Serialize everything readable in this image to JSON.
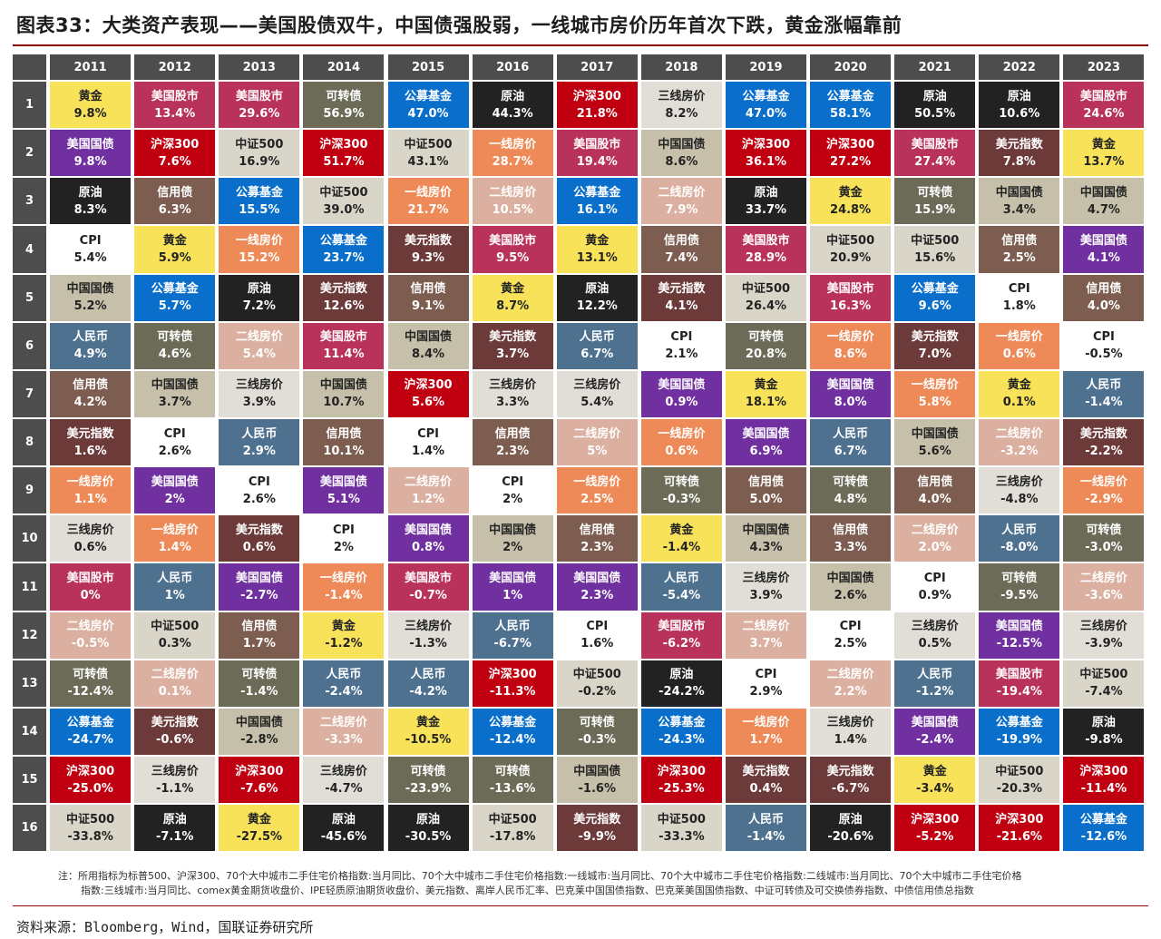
{
  "title": "图表33：大类资产表现——美国股债双牛，中国债强股弱，一线城市房价历年首次下跌，黄金涨幅靠前",
  "note_lines": [
    "注：所用指标为标普500、沪深300、70个大中城市二手住宅价格指数:当月同比、70个大中城市二手住宅价格指数:一线城市:当月同比、70个大中城市二手住宅价格指数:二线城市:当月同比、70个大中城市二手住宅价格",
    "指数:三线城市:当月同比、comex黄金期货收盘价、IPE轻质原油期货收盘价、美元指数、离岸人民币汇率、巴克莱中国国债指数、巴克莱美国国债指数、中证可转债及可交换债券指数、中债信用债总指数"
  ],
  "source": "资料来源：Bloomberg，Wind，国联证券研究所",
  "chart_data": {
    "type": "table",
    "years": [
      "2011",
      "2012",
      "2013",
      "2014",
      "2015",
      "2016",
      "2017",
      "2018",
      "2019",
      "2020",
      "2021",
      "2022",
      "2023"
    ],
    "ranks": [
      "1",
      "2",
      "3",
      "4",
      "5",
      "6",
      "7",
      "8",
      "9",
      "10",
      "11",
      "12",
      "13",
      "14",
      "15",
      "16"
    ],
    "asset_colors": {
      "黄金": {
        "bg": "#f7e25a",
        "fg": "#222222"
      },
      "美国股市": {
        "bg": "#b9325c",
        "fg": "#ffffff"
      },
      "可转债": {
        "bg": "#6b6b58",
        "fg": "#ffffff"
      },
      "公募基金": {
        "bg": "#0a6fcb",
        "fg": "#ffffff"
      },
      "原油": {
        "bg": "#222222",
        "fg": "#ffffff"
      },
      "沪深300": {
        "bg": "#c00010",
        "fg": "#ffffff"
      },
      "三线房价": {
        "bg": "#e0ded6",
        "fg": "#222222"
      },
      "美国国债": {
        "bg": "#7030a0",
        "fg": "#ffffff"
      },
      "中国国债": {
        "bg": "#c6c0ab",
        "fg": "#222222"
      },
      "中证500": {
        "bg": "#d9d5c8",
        "fg": "#222222"
      },
      "美元指数": {
        "bg": "#6d3a3a",
        "fg": "#ffffff"
      },
      "一线房价": {
        "bg": "#ee8a57",
        "fg": "#ffffff"
      },
      "二线房价": {
        "bg": "#dcb0a0",
        "fg": "#ffffff"
      },
      "信用债": {
        "bg": "#7d5d50",
        "fg": "#ffffff"
      },
      "CPI": {
        "bg": "#ffffff",
        "fg": "#222222"
      },
      "人民币": {
        "bg": "#4e7190",
        "fg": "#ffffff"
      }
    },
    "rows": [
      [
        [
          "黄金",
          "9.8%"
        ],
        [
          "美国股市",
          "13.4%"
        ],
        [
          "美国股市",
          "29.6%"
        ],
        [
          "可转债",
          "56.9%"
        ],
        [
          "公募基金",
          "47.0%"
        ],
        [
          "原油",
          "44.3%"
        ],
        [
          "沪深300",
          "21.8%"
        ],
        [
          "三线房价",
          "8.2%"
        ],
        [
          "公募基金",
          "47.0%"
        ],
        [
          "公募基金",
          "58.1%"
        ],
        [
          "原油",
          "50.5%"
        ],
        [
          "原油",
          "10.6%"
        ],
        [
          "美国股市",
          "24.6%"
        ]
      ],
      [
        [
          "美国国债",
          "9.8%"
        ],
        [
          "沪深300",
          "7.6%"
        ],
        [
          "中证500",
          "16.9%"
        ],
        [
          "沪深300",
          "51.7%"
        ],
        [
          "中证500",
          "43.1%"
        ],
        [
          "一线房价",
          "28.7%"
        ],
        [
          "美国股市",
          "19.4%"
        ],
        [
          "中国国债",
          "8.6%"
        ],
        [
          "沪深300",
          "36.1%"
        ],
        [
          "沪深300",
          "27.2%"
        ],
        [
          "美国股市",
          "27.4%"
        ],
        [
          "美元指数",
          "7.8%"
        ],
        [
          "黄金",
          "13.7%"
        ]
      ],
      [
        [
          "原油",
          "8.3%"
        ],
        [
          "信用债",
          "6.3%"
        ],
        [
          "公募基金",
          "15.5%"
        ],
        [
          "中证500",
          "39.0%"
        ],
        [
          "一线房价",
          "21.7%"
        ],
        [
          "二线房价",
          "10.5%"
        ],
        [
          "公募基金",
          "16.1%"
        ],
        [
          "二线房价",
          "7.9%"
        ],
        [
          "原油",
          "33.7%"
        ],
        [
          "黄金",
          "24.8%"
        ],
        [
          "可转债",
          "15.9%"
        ],
        [
          "中国国债",
          "3.4%"
        ],
        [
          "中国国债",
          "4.7%"
        ]
      ],
      [
        [
          "CPI",
          "5.4%"
        ],
        [
          "黄金",
          "5.9%"
        ],
        [
          "一线房价",
          "15.2%"
        ],
        [
          "公募基金",
          "23.7%"
        ],
        [
          "美元指数",
          "9.3%"
        ],
        [
          "美国股市",
          "9.5%"
        ],
        [
          "黄金",
          "13.1%"
        ],
        [
          "信用债",
          "7.4%"
        ],
        [
          "美国股市",
          "28.9%"
        ],
        [
          "中证500",
          "20.9%"
        ],
        [
          "中证500",
          "15.6%"
        ],
        [
          "信用债",
          "2.5%"
        ],
        [
          "美国国债",
          "4.1%"
        ]
      ],
      [
        [
          "中国国债",
          "5.2%"
        ],
        [
          "公募基金",
          "5.7%"
        ],
        [
          "原油",
          "7.2%"
        ],
        [
          "美元指数",
          "12.6%"
        ],
        [
          "信用债",
          "9.1%"
        ],
        [
          "黄金",
          "8.7%"
        ],
        [
          "原油",
          "12.2%"
        ],
        [
          "美元指数",
          "4.1%"
        ],
        [
          "中证500",
          "26.4%"
        ],
        [
          "美国股市",
          "16.3%"
        ],
        [
          "公募基金",
          "9.6%"
        ],
        [
          "CPI",
          "1.8%"
        ],
        [
          "信用债",
          "4.0%"
        ]
      ],
      [
        [
          "人民币",
          "4.9%"
        ],
        [
          "可转债",
          "4.6%"
        ],
        [
          "二线房价",
          "5.4%"
        ],
        [
          "美国股市",
          "11.4%"
        ],
        [
          "中国国债",
          "8.4%"
        ],
        [
          "美元指数",
          "3.7%"
        ],
        [
          "人民币",
          "6.7%"
        ],
        [
          "CPI",
          "2.1%"
        ],
        [
          "可转债",
          "20.8%"
        ],
        [
          "一线房价",
          "8.6%"
        ],
        [
          "美元指数",
          "7.0%"
        ],
        [
          "一线房价",
          "0.6%"
        ],
        [
          "CPI",
          "-0.5%"
        ]
      ],
      [
        [
          "信用债",
          "4.2%"
        ],
        [
          "中国国债",
          "3.7%"
        ],
        [
          "三线房价",
          "3.9%"
        ],
        [
          "中国国债",
          "10.7%"
        ],
        [
          "沪深300",
          "5.6%"
        ],
        [
          "三线房价",
          "3.3%"
        ],
        [
          "三线房价",
          "5.4%"
        ],
        [
          "美国国债",
          "0.9%"
        ],
        [
          "黄金",
          "18.1%"
        ],
        [
          "美国国债",
          "8.0%"
        ],
        [
          "一线房价",
          "5.8%"
        ],
        [
          "黄金",
          "0.1%"
        ],
        [
          "人民币",
          "-1.4%"
        ]
      ],
      [
        [
          "美元指数",
          "1.6%"
        ],
        [
          "CPI",
          "2.6%"
        ],
        [
          "人民币",
          "2.9%"
        ],
        [
          "信用债",
          "10.1%"
        ],
        [
          "CPI",
          "1.4%"
        ],
        [
          "信用债",
          "2.3%"
        ],
        [
          "二线房价",
          "5%"
        ],
        [
          "一线房价",
          "0.6%"
        ],
        [
          "美国国债",
          "6.9%"
        ],
        [
          "人民币",
          "6.7%"
        ],
        [
          "中国国债",
          "5.6%"
        ],
        [
          "二线房价",
          "-3.2%"
        ],
        [
          "美元指数",
          "-2.2%"
        ]
      ],
      [
        [
          "一线房价",
          "1.1%"
        ],
        [
          "美国国债",
          "2%"
        ],
        [
          "CPI",
          "2.6%"
        ],
        [
          "美国国债",
          "5.1%"
        ],
        [
          "二线房价",
          "1.2%"
        ],
        [
          "CPI",
          "2%"
        ],
        [
          "一线房价",
          "2.5%"
        ],
        [
          "可转债",
          "-0.3%"
        ],
        [
          "信用债",
          "5.0%"
        ],
        [
          "可转债",
          "4.8%"
        ],
        [
          "信用债",
          "4.0%"
        ],
        [
          "三线房价",
          "-4.8%"
        ],
        [
          "一线房价",
          "-2.9%"
        ]
      ],
      [
        [
          "三线房价",
          "0.6%"
        ],
        [
          "一线房价",
          "1.4%"
        ],
        [
          "美元指数",
          "0.6%"
        ],
        [
          "CPI",
          "2%"
        ],
        [
          "美国国债",
          "0.8%"
        ],
        [
          "中国国债",
          "2%"
        ],
        [
          "信用债",
          "2.3%"
        ],
        [
          "黄金",
          "-1.4%"
        ],
        [
          "中国国债",
          "4.3%"
        ],
        [
          "信用债",
          "3.3%"
        ],
        [
          "二线房价",
          "2.0%"
        ],
        [
          "人民币",
          "-8.0%"
        ],
        [
          "可转债",
          "-3.0%"
        ]
      ],
      [
        [
          "美国股市",
          "0%"
        ],
        [
          "人民币",
          "1%"
        ],
        [
          "美国国债",
          "-2.7%"
        ],
        [
          "一线房价",
          "-1.4%"
        ],
        [
          "美国股市",
          "-0.7%"
        ],
        [
          "美国国债",
          "1%"
        ],
        [
          "美国国债",
          "2.3%"
        ],
        [
          "人民币",
          "-5.4%"
        ],
        [
          "三线房价",
          "3.9%"
        ],
        [
          "中国国债",
          "2.6%"
        ],
        [
          "CPI",
          "0.9%"
        ],
        [
          "可转债",
          "-9.5%"
        ],
        [
          "二线房价",
          "-3.6%"
        ]
      ],
      [
        [
          "二线房价",
          "-0.5%"
        ],
        [
          "中证500",
          "0.3%"
        ],
        [
          "信用债",
          "1.7%"
        ],
        [
          "黄金",
          "-1.2%"
        ],
        [
          "三线房价",
          "-1.3%"
        ],
        [
          "人民币",
          "-6.7%"
        ],
        [
          "CPI",
          "1.6%"
        ],
        [
          "美国股市",
          "-6.2%"
        ],
        [
          "二线房价",
          "3.7%"
        ],
        [
          "CPI",
          "2.5%"
        ],
        [
          "三线房价",
          "0.5%"
        ],
        [
          "美国国债",
          "-12.5%"
        ],
        [
          "三线房价",
          "-3.9%"
        ]
      ],
      [
        [
          "可转债",
          "-12.4%"
        ],
        [
          "二线房价",
          "0.1%"
        ],
        [
          "可转债",
          "-1.4%"
        ],
        [
          "人民币",
          "-2.4%"
        ],
        [
          "人民币",
          "-4.2%"
        ],
        [
          "沪深300",
          "-11.3%"
        ],
        [
          "中证500",
          "-0.2%"
        ],
        [
          "原油",
          "-24.2%"
        ],
        [
          "CPI",
          "2.9%"
        ],
        [
          "二线房价",
          "2.2%"
        ],
        [
          "人民币",
          "-1.2%"
        ],
        [
          "美国股市",
          "-19.4%"
        ],
        [
          "中证500",
          "-7.4%"
        ]
      ],
      [
        [
          "公募基金",
          "-24.7%"
        ],
        [
          "美元指数",
          "-0.6%"
        ],
        [
          "中国国债",
          "-2.8%"
        ],
        [
          "二线房价",
          "-3.3%"
        ],
        [
          "黄金",
          "-10.5%"
        ],
        [
          "公募基金",
          "-12.4%"
        ],
        [
          "可转债",
          "-0.3%"
        ],
        [
          "公募基金",
          "-24.3%"
        ],
        [
          "一线房价",
          "1.7%"
        ],
        [
          "三线房价",
          "1.4%"
        ],
        [
          "美国国债",
          "-2.4%"
        ],
        [
          "公募基金",
          "-19.9%"
        ],
        [
          "原油",
          "-9.8%"
        ]
      ],
      [
        [
          "沪深300",
          "-25.0%"
        ],
        [
          "三线房价",
          "-1.1%"
        ],
        [
          "沪深300",
          "-7.6%"
        ],
        [
          "三线房价",
          "-4.7%"
        ],
        [
          "可转债",
          "-23.9%"
        ],
        [
          "可转债",
          "-13.6%"
        ],
        [
          "中国国债",
          "-1.6%"
        ],
        [
          "沪深300",
          "-25.3%"
        ],
        [
          "美元指数",
          "0.4%"
        ],
        [
          "美元指数",
          "-6.7%"
        ],
        [
          "黄金",
          "-3.4%"
        ],
        [
          "中证500",
          "-20.3%"
        ],
        [
          "沪深300",
          "-11.4%"
        ]
      ],
      [
        [
          "中证500",
          "-33.8%"
        ],
        [
          "原油",
          "-7.1%"
        ],
        [
          "黄金",
          "-27.5%"
        ],
        [
          "原油",
          "-45.6%"
        ],
        [
          "原油",
          "-30.5%"
        ],
        [
          "中证500",
          "-17.8%"
        ],
        [
          "美元指数",
          "-9.9%"
        ],
        [
          "中证500",
          "-33.3%"
        ],
        [
          "人民币",
          "-1.4%"
        ],
        [
          "原油",
          "-20.6%"
        ],
        [
          "沪深300",
          "-5.2%"
        ],
        [
          "沪深300",
          "-21.6%"
        ],
        [
          "公募基金",
          "-12.6%"
        ]
      ]
    ]
  }
}
